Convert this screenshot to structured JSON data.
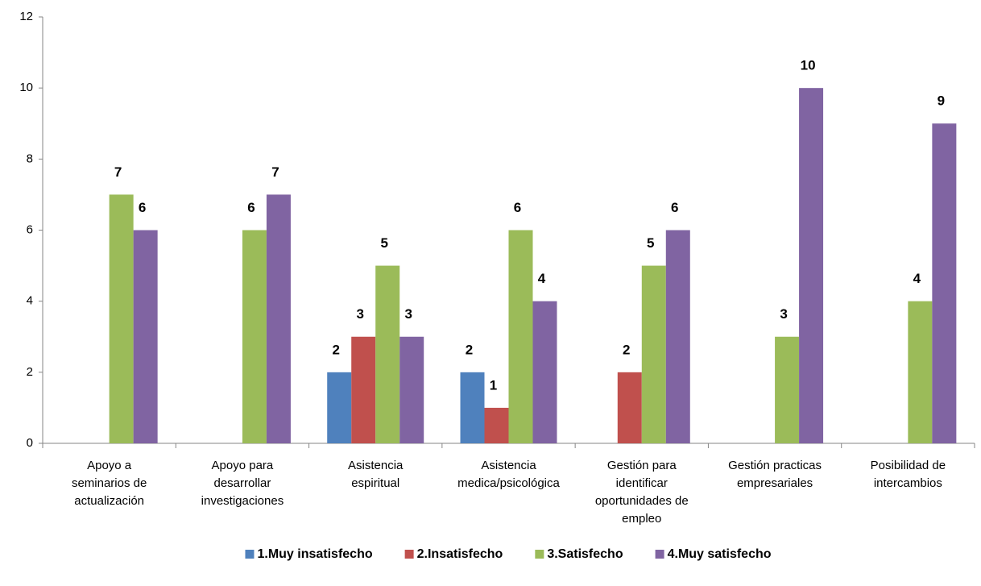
{
  "chart_data": {
    "type": "bar",
    "categories": [
      "Apoyo a seminarios de actualización",
      "Apoyo para desarrollar investigaciones",
      "Asistencia espiritual",
      "Asistencia medica/psicológica",
      "Gestión para identificar oportunidades de empleo",
      "Gestión practicas empresariales",
      "Posibilidad de intercambios"
    ],
    "series": [
      {
        "name": "1.Muy insatisfecho",
        "color": "#4f81bd",
        "values": [
          null,
          null,
          2,
          2,
          null,
          null,
          null
        ]
      },
      {
        "name": "2.Insatisfecho",
        "color": "#c0504d",
        "values": [
          null,
          null,
          3,
          1,
          2,
          null,
          null
        ]
      },
      {
        "name": "3.Satisfecho",
        "color": "#9bbb59",
        "values": [
          7,
          6,
          5,
          6,
          5,
          3,
          4
        ]
      },
      {
        "name": "4.Muy satisfecho",
        "color": "#8064a2",
        "values": [
          6,
          7,
          3,
          4,
          6,
          10,
          9
        ]
      }
    ],
    "ylim": [
      0,
      12
    ],
    "yticks": [
      0,
      2,
      4,
      6,
      8,
      10,
      12
    ],
    "grid": false,
    "legend": "bottom"
  }
}
